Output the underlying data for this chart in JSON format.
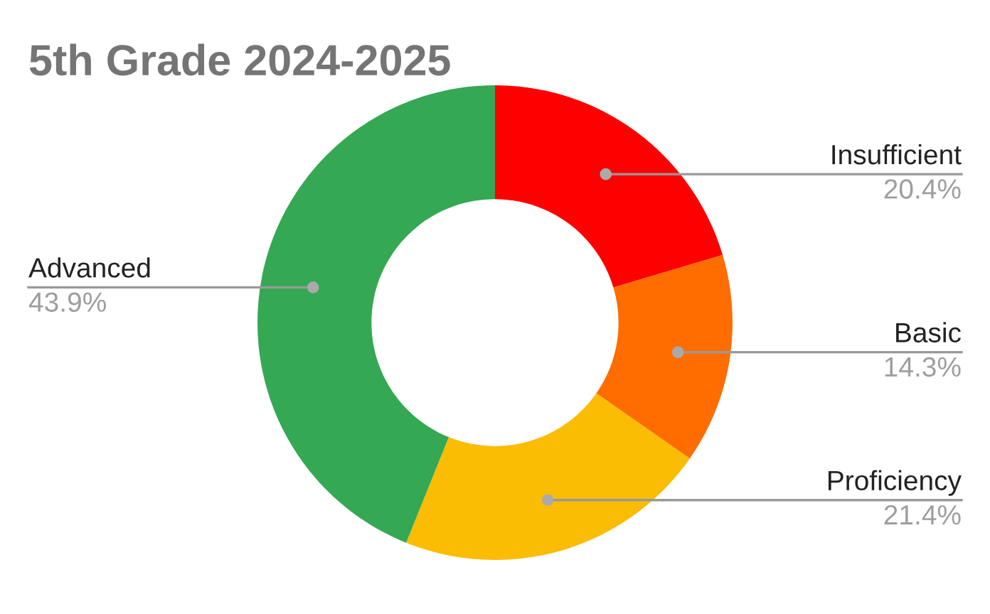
{
  "chart_data": {
    "type": "donut",
    "title": "5th Grade 2024-2025",
    "categories": [
      "Insufficient",
      "Basic",
      "Proficiency",
      "Advanced"
    ],
    "values": [
      20.4,
      14.3,
      21.4,
      43.9
    ],
    "colors": [
      "#ff0000",
      "#ff6d01",
      "#fbbc04",
      "#34a853"
    ],
    "value_labels": [
      "20.4%",
      "14.3%",
      "21.4%",
      "43.9%"
    ],
    "legend": false
  }
}
